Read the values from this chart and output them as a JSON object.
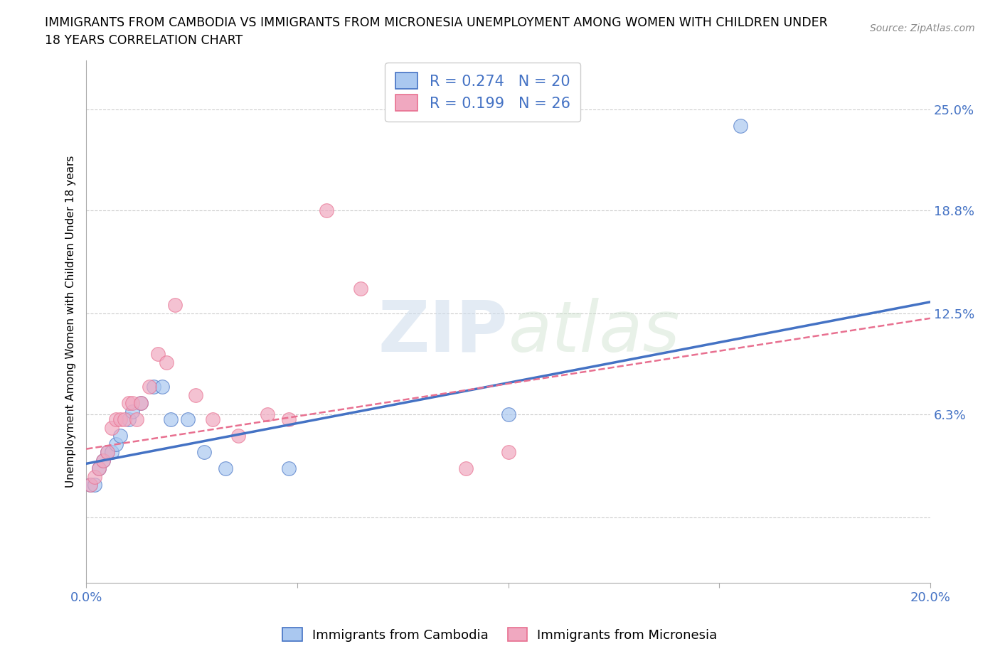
{
  "title_line1": "IMMIGRANTS FROM CAMBODIA VS IMMIGRANTS FROM MICRONESIA UNEMPLOYMENT AMONG WOMEN WITH CHILDREN UNDER",
  "title_line2": "18 YEARS CORRELATION CHART",
  "source": "Source: ZipAtlas.com",
  "ylabel": "Unemployment Among Women with Children Under 18 years",
  "xlim": [
    0.0,
    0.2
  ],
  "ylim": [
    -0.04,
    0.28
  ],
  "yticks": [
    0.0,
    0.063,
    0.125,
    0.188,
    0.25
  ],
  "ytick_labels": [
    "",
    "6.3%",
    "12.5%",
    "18.8%",
    "25.0%"
  ],
  "watermark": "ZIPatlas",
  "cambodia_color": "#aac8f0",
  "micronesia_color": "#f0a8c0",
  "cambodia_line_color": "#4472c4",
  "micronesia_line_color": "#e87090",
  "legend_r_cambodia": "0.274",
  "legend_n_cambodia": "20",
  "legend_r_micronesia": "0.199",
  "legend_n_micronesia": "26",
  "cambodia_x": [
    0.001,
    0.002,
    0.003,
    0.004,
    0.005,
    0.006,
    0.007,
    0.008,
    0.01,
    0.011,
    0.013,
    0.016,
    0.018,
    0.02,
    0.024,
    0.028,
    0.033,
    0.048,
    0.1,
    0.155
  ],
  "cambodia_y": [
    0.02,
    0.02,
    0.03,
    0.035,
    0.04,
    0.04,
    0.045,
    0.05,
    0.06,
    0.065,
    0.07,
    0.08,
    0.08,
    0.06,
    0.06,
    0.04,
    0.03,
    0.03,
    0.063,
    0.24
  ],
  "micronesia_x": [
    0.001,
    0.002,
    0.003,
    0.004,
    0.005,
    0.006,
    0.007,
    0.008,
    0.009,
    0.01,
    0.011,
    0.012,
    0.013,
    0.015,
    0.017,
    0.019,
    0.021,
    0.026,
    0.03,
    0.036,
    0.043,
    0.048,
    0.057,
    0.065,
    0.09,
    0.1
  ],
  "micronesia_y": [
    0.02,
    0.025,
    0.03,
    0.035,
    0.04,
    0.055,
    0.06,
    0.06,
    0.06,
    0.07,
    0.07,
    0.06,
    0.07,
    0.08,
    0.1,
    0.095,
    0.13,
    0.075,
    0.06,
    0.05,
    0.063,
    0.06,
    0.188,
    0.14,
    0.03,
    0.04
  ],
  "cam_line_x0": 0.0,
  "cam_line_y0": 0.033,
  "cam_line_x1": 0.2,
  "cam_line_y1": 0.132,
  "mic_line_x0": 0.0,
  "mic_line_y0": 0.042,
  "mic_line_x1": 0.2,
  "mic_line_y1": 0.122,
  "background_color": "#ffffff",
  "grid_color": "#cccccc"
}
